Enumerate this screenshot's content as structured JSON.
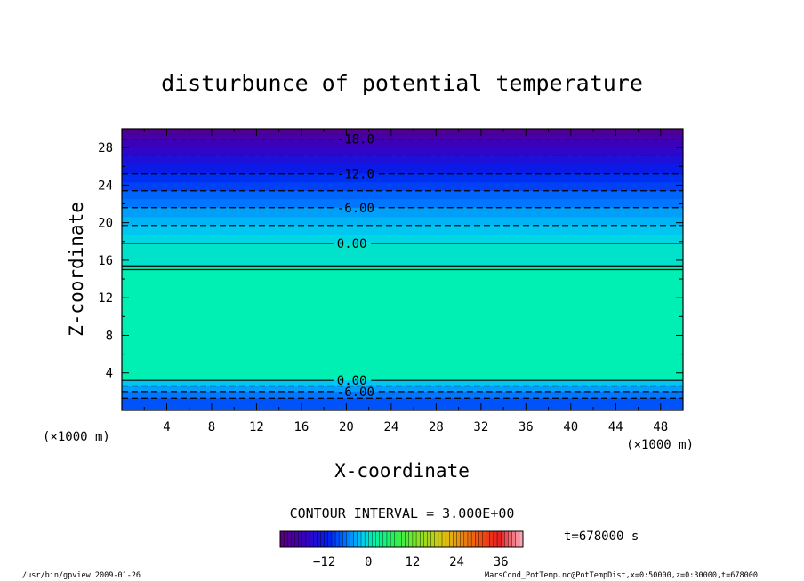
{
  "chart_data": {
    "type": "heatmap",
    "title": "disturbunce of potential temperature",
    "xlabel": "X-coordinate",
    "ylabel": "Z-coordinate",
    "x_unit_left": "(×1000 m)",
    "x_unit_right": "(×1000 m)",
    "xlim": [
      0,
      50
    ],
    "ylim": [
      0,
      30
    ],
    "x_ticks": [
      4,
      8,
      12,
      16,
      20,
      24,
      28,
      32,
      36,
      40,
      44,
      48
    ],
    "y_ticks": [
      4,
      8,
      12,
      16,
      20,
      24,
      28
    ],
    "contour_interval_text": "CONTOUR INTERVAL = 3.000E+00",
    "contours": [
      {
        "label": "-18.0",
        "z": 28.9,
        "label_x": 19,
        "dashed": true
      },
      {
        "label": "-12.0",
        "z": 25.2,
        "label_x": 19,
        "dashed": true
      },
      {
        "label": "-6.00",
        "z": 21.6,
        "label_x": 19,
        "dashed": true
      },
      {
        "label": "0.00",
        "z": 17.8,
        "label_x": 19,
        "dashed": false
      },
      {
        "label": "0.00",
        "z": 3.2,
        "label_x": 19,
        "dashed": false
      },
      {
        "label": "-6.00",
        "z": 2.0,
        "label_x": 19,
        "dashed": true
      }
    ],
    "extra_lines": [
      {
        "z": 27.2,
        "dashed": true
      },
      {
        "z": 23.4,
        "dashed": true
      },
      {
        "z": 19.7,
        "dashed": true
      },
      {
        "z": 15.4,
        "dashed": false
      },
      {
        "z": 15.0,
        "dashed": false
      },
      {
        "z": 2.6,
        "dashed": true
      },
      {
        "z": 1.3,
        "dashed": true
      }
    ],
    "field_bands": [
      {
        "z0": 29.5,
        "z1": 30.0,
        "value": -22
      },
      {
        "z0": 28.9,
        "z1": 29.5,
        "value": -20
      },
      {
        "z0": 28.0,
        "z1": 28.9,
        "value": -18
      },
      {
        "z0": 27.2,
        "z1": 28.0,
        "value": -16
      },
      {
        "z0": 26.2,
        "z1": 27.2,
        "value": -14
      },
      {
        "z0": 25.2,
        "z1": 26.2,
        "value": -12
      },
      {
        "z0": 24.3,
        "z1": 25.2,
        "value": -10
      },
      {
        "z0": 23.4,
        "z1": 24.3,
        "value": -9
      },
      {
        "z0": 22.5,
        "z1": 23.4,
        "value": -7
      },
      {
        "z0": 21.6,
        "z1": 22.5,
        "value": -6
      },
      {
        "z0": 20.6,
        "z1": 21.6,
        "value": -4
      },
      {
        "z0": 19.7,
        "z1": 20.6,
        "value": -3
      },
      {
        "z0": 18.7,
        "z1": 19.7,
        "value": -2
      },
      {
        "z0": 17.8,
        "z1": 18.7,
        "value": -1
      },
      {
        "z0": 15.2,
        "z1": 17.8,
        "value": 0
      },
      {
        "z0": 3.2,
        "z1": 15.2,
        "value": 1
      },
      {
        "z0": 2.6,
        "z1": 3.2,
        "value": -2
      },
      {
        "z0": 2.0,
        "z1": 2.6,
        "value": -4
      },
      {
        "z0": 1.3,
        "z1": 2.0,
        "value": -6
      },
      {
        "z0": 0.0,
        "z1": 1.3,
        "value": -8
      }
    ],
    "colorbar": {
      "min": -24,
      "max": 42,
      "ticks": [
        -12,
        0,
        12,
        24,
        36
      ]
    },
    "time_label": "t=678000 s",
    "footer_left": "/usr/bin/gpview   2009-01-26",
    "footer_right": "MarsCond_PotTemp.nc@PotTempDist,x=0:50000,z=0:30000,t=678000"
  }
}
